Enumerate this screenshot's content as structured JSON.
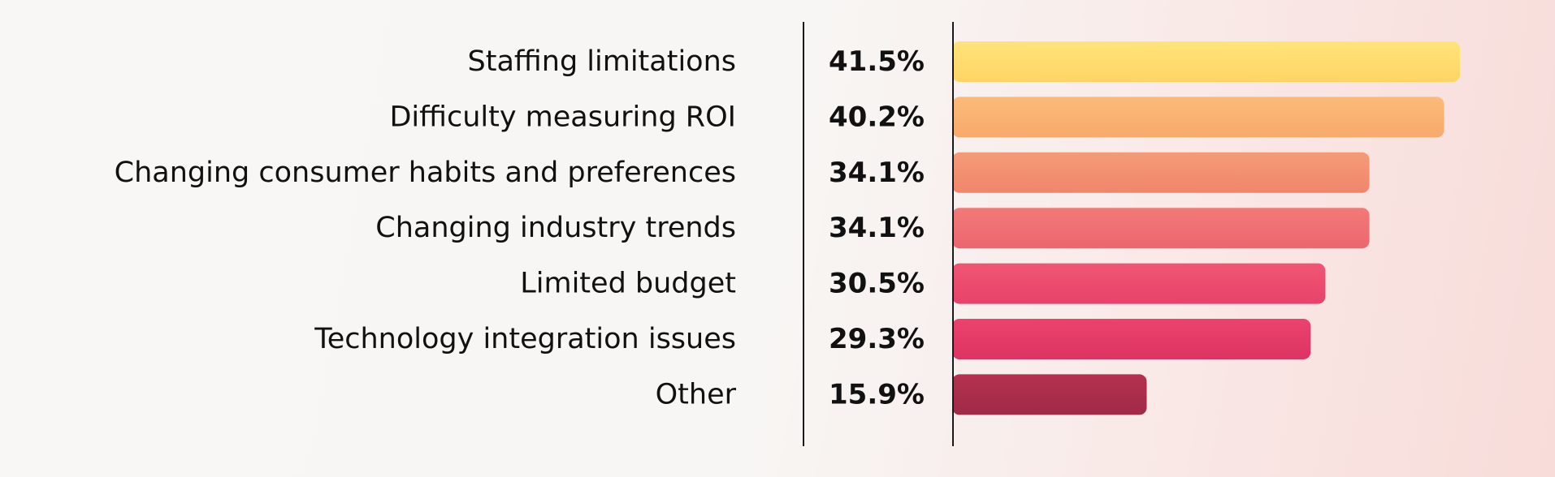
{
  "chart_data": {
    "type": "bar",
    "orientation": "horizontal",
    "title": "",
    "xlabel": "",
    "ylabel": "",
    "categories": [
      "Staffing limitations",
      "Difficulty measuring ROI",
      "Changing consumer habits and preferences",
      "Changing industry trends",
      "Limited budget",
      "Technology integration issues",
      "Other"
    ],
    "values": [
      41.5,
      40.2,
      34.1,
      34.1,
      30.5,
      29.3,
      15.9
    ],
    "value_labels": [
      "41.5%",
      "40.2%",
      "34.1%",
      "34.1%",
      "30.5%",
      "29.3%",
      "15.9%"
    ],
    "unit": "%",
    "xlim": [
      0,
      41.5
    ],
    "grid": false,
    "legend": "none",
    "bar_colors": [
      [
        "#ffe47a",
        "#ffd465"
      ],
      [
        "#fbbb78",
        "#f8a96c"
      ],
      [
        "#f59b76",
        "#f0866c"
      ],
      [
        "#f27a78",
        "#ec6670"
      ],
      [
        "#f05674",
        "#e8426a"
      ],
      [
        "#ec426e",
        "#dc3462"
      ],
      [
        "#b5314f",
        "#a02a48"
      ]
    ]
  }
}
